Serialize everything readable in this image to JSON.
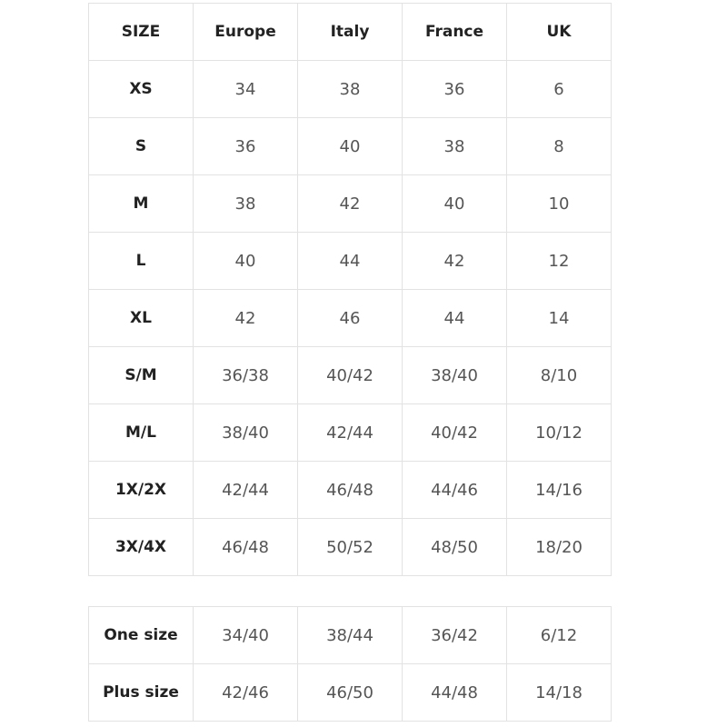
{
  "table": {
    "headers": [
      "SIZE",
      "Europe",
      "Italy",
      "France",
      "UK"
    ],
    "rows": [
      [
        "XS",
        "34",
        "38",
        "36",
        "6"
      ],
      [
        "S",
        "36",
        "40",
        "38",
        "8"
      ],
      [
        "M",
        "38",
        "42",
        "40",
        "10"
      ],
      [
        "L",
        "40",
        "44",
        "42",
        "12"
      ],
      [
        "XL",
        "42",
        "46",
        "44",
        "14"
      ],
      [
        "S/M",
        "36/38",
        "40/42",
        "38/40",
        "8/10"
      ],
      [
        "M/L",
        "38/40",
        "42/44",
        "40/42",
        "10/12"
      ],
      [
        "1X/2X",
        "42/44",
        "46/48",
        "44/46",
        "14/16"
      ],
      [
        "3X/4X",
        "46/48",
        "50/52",
        "48/50",
        "18/20"
      ]
    ]
  },
  "table2": {
    "rows": [
      [
        "One size",
        "34/40",
        "38/44",
        "36/42",
        "6/12"
      ],
      [
        "Plus size",
        "42/46",
        "46/50",
        "44/48",
        "14/18"
      ]
    ]
  }
}
